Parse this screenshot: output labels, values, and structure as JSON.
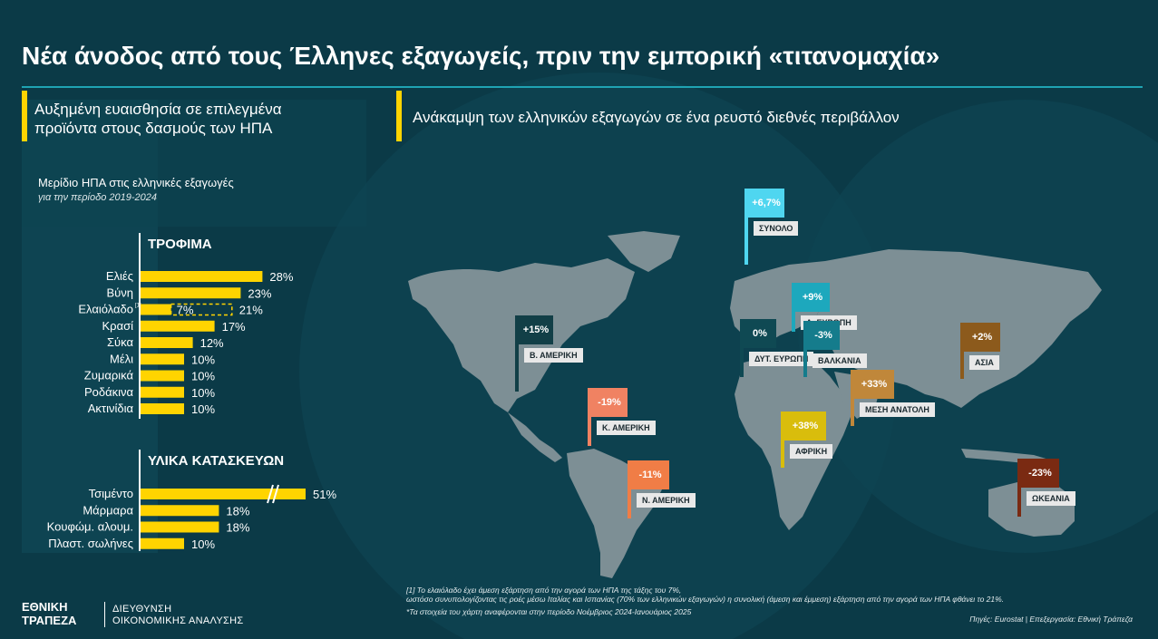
{
  "title": "Νέα άνοδος από τους Έλληνες εξαγωγείς, πριν την εμπορική «τιτανομαχία»",
  "left_section": {
    "line1": "Αυξημένη ευαισθησία σε επιλεγμένα",
    "line2": "προϊόντα στους δασμούς των ΗΠΑ"
  },
  "right_section": {
    "heading": "Ανάκαμψη των ελληνικών εξαγωγών σε ένα ρευστό διεθνές περιβάλλον"
  },
  "chart_title": "Μερίδιο ΗΠΑ στις ελληνικές εξαγωγές",
  "chart_subtitle": "για την περίοδο 2019-2024",
  "colors": {
    "bg": "#0b3a47",
    "bar": "#ffd400",
    "accent": "#1fa3b3"
  },
  "chart_data": [
    {
      "type": "bar",
      "title": "ΤΡΟΦΙΜΑ",
      "categories": [
        "Ελιές",
        "Βύνη",
        "Ελαιόλαδο",
        "Κρασί",
        "Σύκα",
        "Μέλι",
        "Ζυμαρικά",
        "Ροδάκινα",
        "Ακτινίδια"
      ],
      "values": [
        28,
        23,
        21,
        17,
        12,
        10,
        10,
        10,
        10
      ],
      "labels": [
        "28%",
        "23%",
        "21%",
        "17%",
        "12%",
        "10%",
        "10%",
        "10%",
        "10%"
      ],
      "footnote_marker": {
        "category": "Ελαιόλαδο",
        "marker": "[1]"
      },
      "direct_share": {
        "category": "Ελαιόλαδο",
        "value": 7,
        "label": "7%"
      }
    },
    {
      "type": "bar",
      "title": "ΥΛΙΚΑ ΚΑΤΑΣΚΕΥΩΝ",
      "categories": [
        "Τσιμέντο",
        "Μάρμαρα",
        "Κουφώμ. αλουμ.",
        "Πλαστ. σωλήνες"
      ],
      "values": [
        51,
        18,
        18,
        10
      ],
      "labels": [
        "51%",
        "18%",
        "18%",
        "10%"
      ],
      "axis_break": "Τσιμέντο"
    },
    {
      "type": "map",
      "flags": [
        {
          "name": "ΣΥΝΟΛΟ",
          "value": "+6,7%",
          "color": "#4fd6f0"
        },
        {
          "name": "Β. ΑΜΕΡΙΚΗ",
          "value": "+15%",
          "color": "#123f47"
        },
        {
          "name": "Κ. ΑΜΕΡΙΚΗ",
          "value": "-19%",
          "color": "#f08262"
        },
        {
          "name": "Ν. ΑΜΕΡΙΚΗ",
          "value": "-11%",
          "color": "#f07d46"
        },
        {
          "name": "ΔΥΤ. ΕΥΡΩΠΗ",
          "value": "0%",
          "color": "#0f4953"
        },
        {
          "name": "Α. ΕΥΡΩΠΗ",
          "value": "+9%",
          "color": "#1da8bd"
        },
        {
          "name": "ΒΑΛΚΑΝΙΑ",
          "value": "-3%",
          "color": "#157c8c"
        },
        {
          "name": "ΜΕΣΗ ΑΝΑΤΟΛΗ",
          "value": "+33%",
          "color": "#c0873a"
        },
        {
          "name": "ΑΦΡΙΚΗ",
          "value": "+38%",
          "color": "#d9bd0c"
        },
        {
          "name": "ΑΣΙΑ",
          "value": "+2%",
          "color": "#8c5a1c"
        },
        {
          "name": "ΩΚΕΑΝΙΑ",
          "value": "-23%",
          "color": "#7a2a12"
        }
      ]
    }
  ],
  "footnotes": {
    "f1": "[1] Το ελαιόλαδο έχει άμεση εξάρτηση από την αγορά των ΗΠΑ της τάξης του 7%,",
    "f2": "ωστόσο συνυπολογίζοντας τις ροές μέσω  Ιταλίας και Ισπανίας (70% των ελληνικών εξαγωγών) η συνολική (άμεση και έμμεση) εξάρτηση από την αγορά των ΗΠΑ φθάνει το 21%.",
    "f3": "*Τα στοιχεία του χάρτη αναφέρονται στην περίοδο Νοέμβριος 2024-Ιανουάριος 2025"
  },
  "source": "Πηγές: Eurostat | Επεξεργασία: Εθνική Τράπεζα",
  "logo": {
    "line1": "ΕΘΝΙΚΗ",
    "line2": "ΤΡΑΠΕΖΑ",
    "sub1": "ΔΙΕΥΘΥΝΣΗ",
    "sub2": "ΟΙΚΟΝΟΜΙΚΗΣ ΑΝΑΛΥΣΗΣ"
  }
}
